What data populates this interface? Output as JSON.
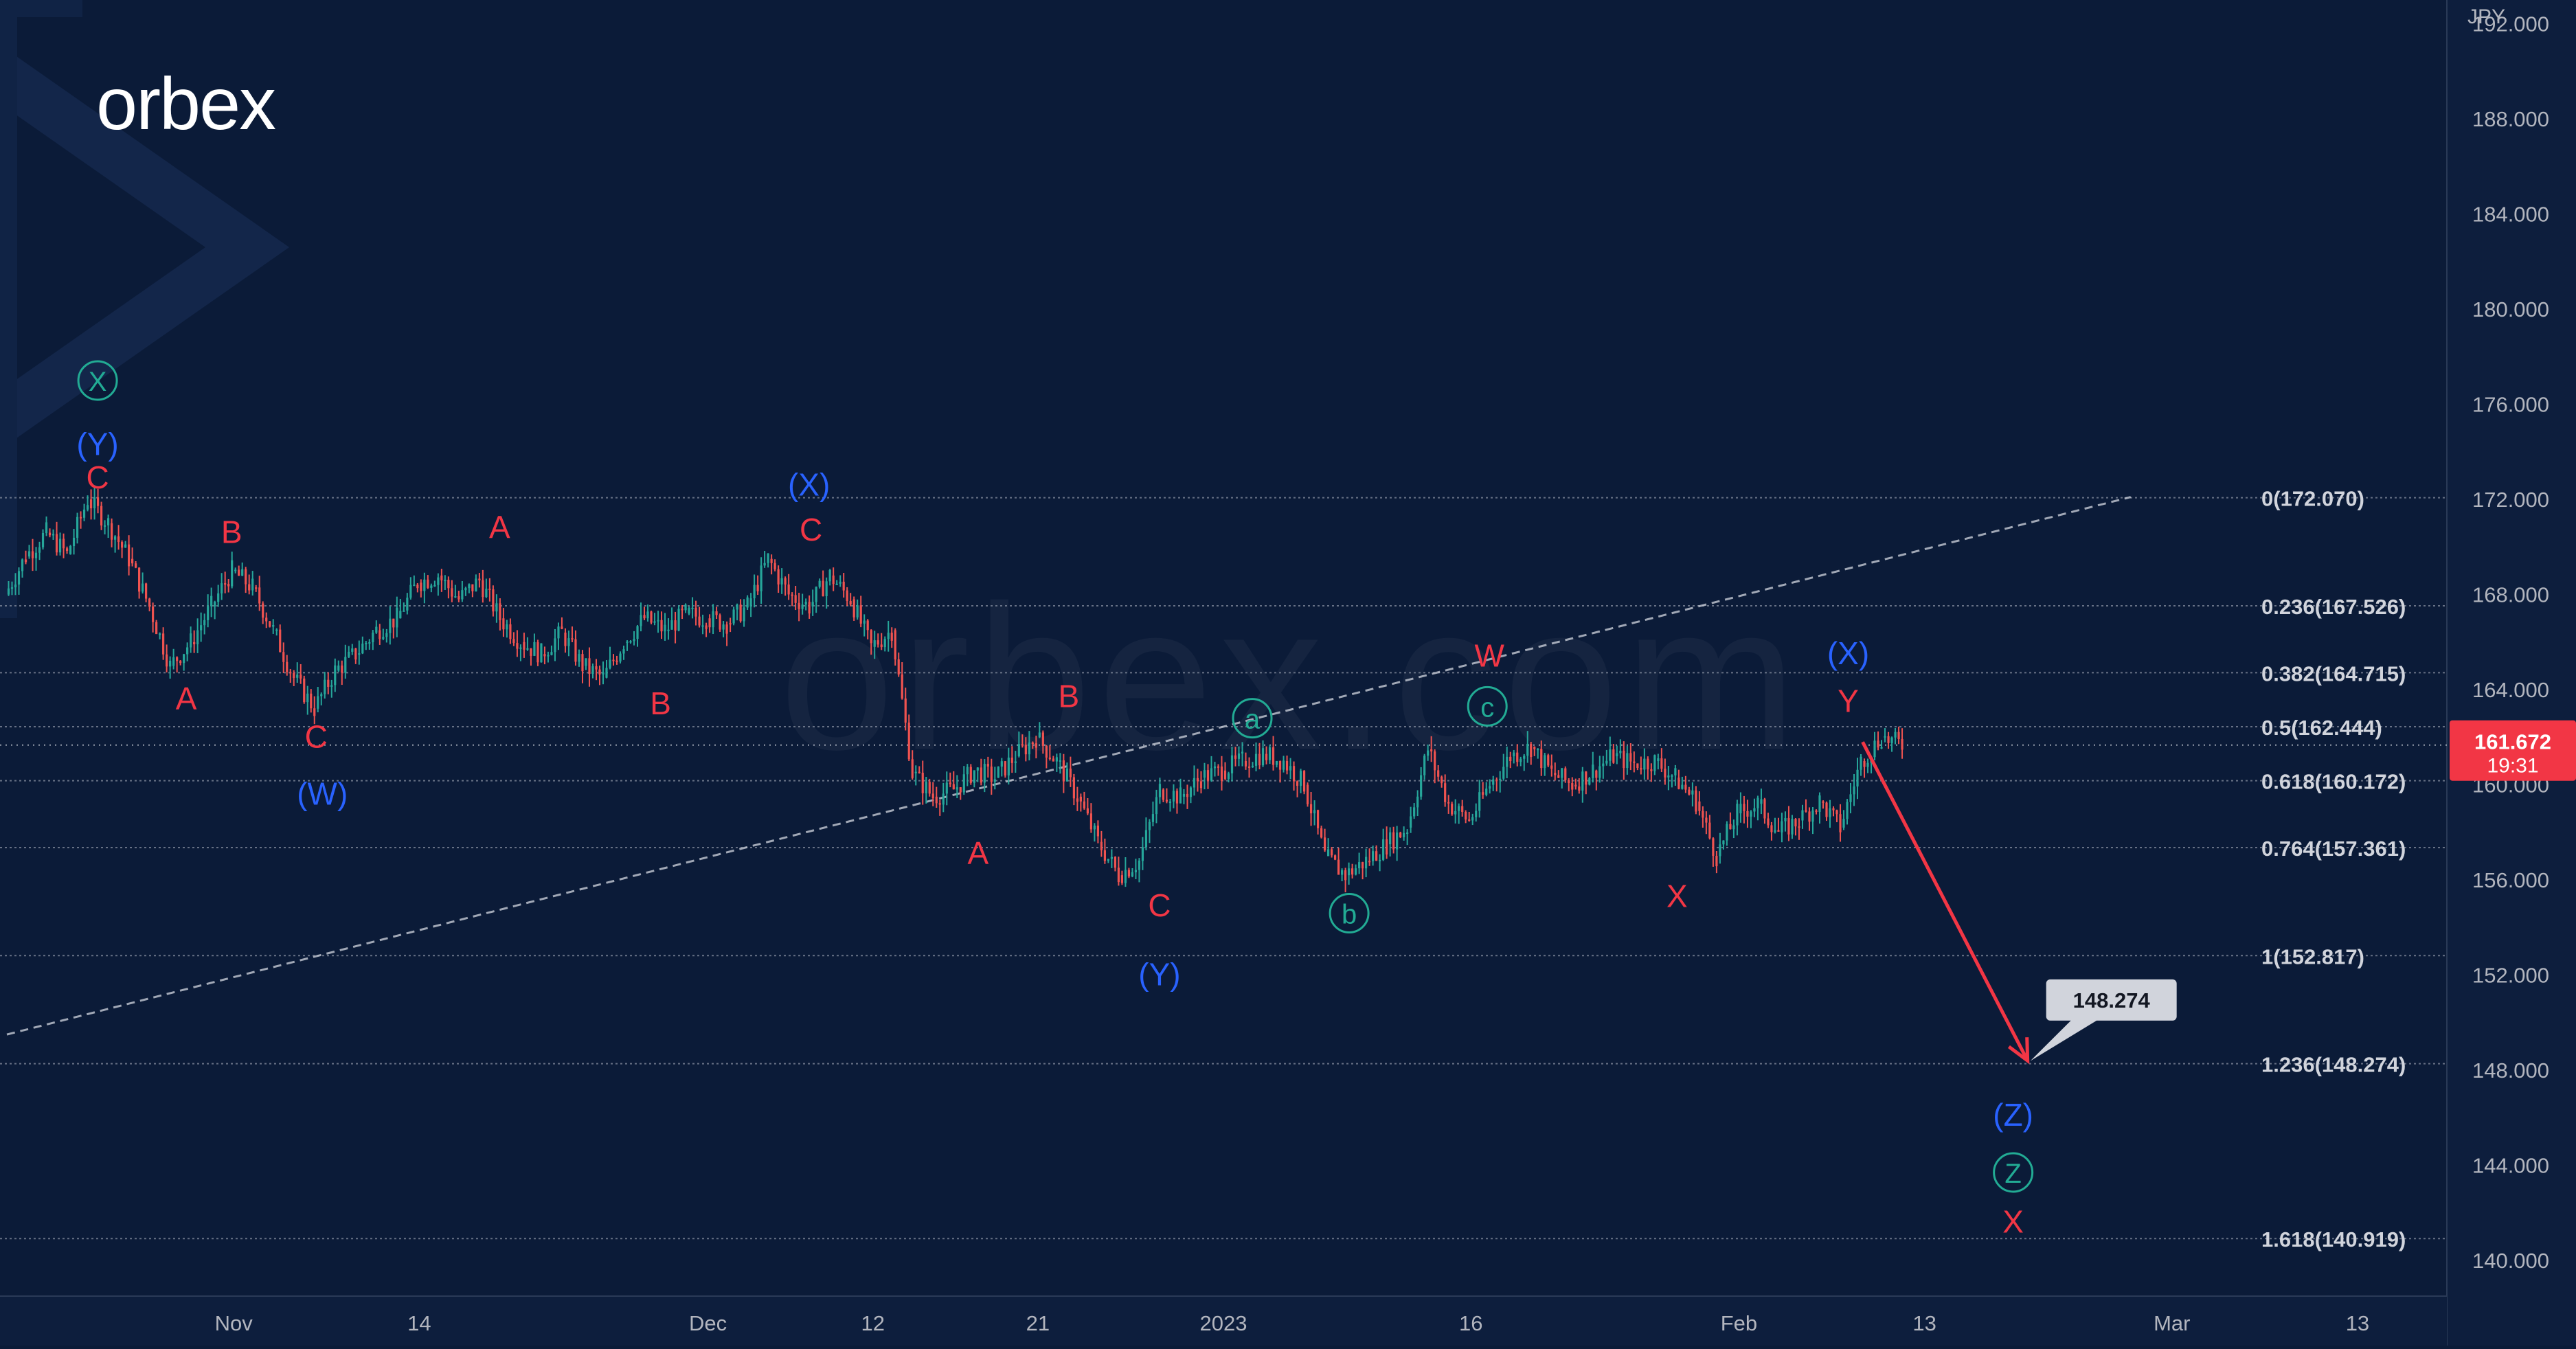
{
  "brand": {
    "logo_text": "orbex",
    "watermark_text": "orbex.com"
  },
  "axis": {
    "currency_label": "JPY",
    "price_ticks": [
      {
        "value": 192,
        "label": "192.000"
      },
      {
        "value": 188,
        "label": "188.000"
      },
      {
        "value": 184,
        "label": "184.000"
      },
      {
        "value": 180,
        "label": "180.000"
      },
      {
        "value": 176,
        "label": "176.000"
      },
      {
        "value": 172,
        "label": "172.000"
      },
      {
        "value": 168,
        "label": "168.000"
      },
      {
        "value": 164,
        "label": "164.000"
      },
      {
        "value": 160,
        "label": "160.000"
      },
      {
        "value": 156,
        "label": "156.000"
      },
      {
        "value": 152,
        "label": "152.000"
      },
      {
        "value": 148,
        "label": "148.000"
      },
      {
        "value": 144,
        "label": "144.000"
      },
      {
        "value": 140,
        "label": "140.000"
      }
    ],
    "time_ticks": [
      {
        "bar": 11,
        "label": "Nov"
      },
      {
        "bar": 20,
        "label": "14"
      },
      {
        "bar": 34,
        "label": "Dec"
      },
      {
        "bar": 42,
        "label": "12"
      },
      {
        "bar": 50,
        "label": "21"
      },
      {
        "bar": 59,
        "label": "2023"
      },
      {
        "bar": 71,
        "label": "16"
      },
      {
        "bar": 84,
        "label": "Feb"
      },
      {
        "bar": 93,
        "label": "13"
      },
      {
        "bar": 105,
        "label": "Mar"
      },
      {
        "bar": 114,
        "label": "13"
      }
    ]
  },
  "current_price": {
    "value": 161.672,
    "label": "161.672",
    "countdown": "19:31",
    "color": "#f23645"
  },
  "target_callout": {
    "value": 148.274,
    "label": "148.274"
  },
  "colors": {
    "background": "#0b1b38",
    "wave_red": "#f23645",
    "wave_blue": "#2962ff",
    "wave_green": "#22ab94",
    "candle_up": "#26a69a",
    "candle_down": "#ef5350",
    "fib_line": "#7e8798"
  },
  "chart_data": {
    "type": "candlestick",
    "title": "",
    "ylabel": "JPY",
    "ylim": [
      138.5,
      193
    ],
    "xlim": [
      0,
      118
    ],
    "grid": false,
    "fibonacci_levels": [
      {
        "ratio": "0",
        "price": 172.07,
        "label": "0(172.070)"
      },
      {
        "ratio": "0.236",
        "price": 167.526,
        "label": "0.236(167.526)"
      },
      {
        "ratio": "0.382",
        "price": 164.715,
        "label": "0.382(164.715)"
      },
      {
        "ratio": "0.5",
        "price": 162.444,
        "label": "0.5(162.444)"
      },
      {
        "ratio": "0.618",
        "price": 160.172,
        "label": "0.618(160.172)"
      },
      {
        "ratio": "0.764",
        "price": 157.361,
        "label": "0.764(157.361)"
      },
      {
        "ratio": "1",
        "price": 152.817,
        "label": "1(152.817)"
      },
      {
        "ratio": "1.236",
        "price": 148.274,
        "label": "1.236(148.274)"
      },
      {
        "ratio": "1.618",
        "price": 140.919,
        "label": "1.618(140.919)"
      }
    ],
    "trendline": {
      "x1": 0,
      "y1": 149.5,
      "x2": 103,
      "y2": 172.1
    },
    "projection_arrow": {
      "x1": 90,
      "y1": 161.8,
      "x2": 98,
      "y2": 148.4
    },
    "price_path": [
      {
        "x": 0,
        "y": 168.0
      },
      {
        "x": 1,
        "y": 169.6
      },
      {
        "x": 2,
        "y": 170.6
      },
      {
        "x": 3,
        "y": 169.7
      },
      {
        "x": 4,
        "y": 172.0
      },
      {
        "x": 5,
        "y": 171.0
      },
      {
        "x": 6,
        "y": 169.5
      },
      {
        "x": 7,
        "y": 167.5
      },
      {
        "x": 8,
        "y": 165.0
      },
      {
        "x": 9,
        "y": 166.0
      },
      {
        "x": 10,
        "y": 167.5
      },
      {
        "x": 11,
        "y": 169.0
      },
      {
        "x": 12,
        "y": 168.3
      },
      {
        "x": 13,
        "y": 166.5
      },
      {
        "x": 14,
        "y": 164.5
      },
      {
        "x": 15,
        "y": 163.2
      },
      {
        "x": 16,
        "y": 164.8
      },
      {
        "x": 17,
        "y": 165.5
      },
      {
        "x": 18,
        "y": 166.5
      },
      {
        "x": 19,
        "y": 167.0
      },
      {
        "x": 20,
        "y": 168.5
      },
      {
        "x": 21,
        "y": 168.8
      },
      {
        "x": 22,
        "y": 167.8
      },
      {
        "x": 23,
        "y": 168.6
      },
      {
        "x": 24,
        "y": 167.0
      },
      {
        "x": 25,
        "y": 166.0
      },
      {
        "x": 26,
        "y": 165.5
      },
      {
        "x": 27,
        "y": 166.4
      },
      {
        "x": 28,
        "y": 165.0
      },
      {
        "x": 29,
        "y": 164.5
      },
      {
        "x": 30,
        "y": 166.0
      },
      {
        "x": 31,
        "y": 167.0
      },
      {
        "x": 32,
        "y": 166.5
      },
      {
        "x": 33,
        "y": 167.2
      },
      {
        "x": 34,
        "y": 167.0
      },
      {
        "x": 35,
        "y": 166.8
      },
      {
        "x": 36,
        "y": 167.5
      },
      {
        "x": 37,
        "y": 169.5
      },
      {
        "x": 38,
        "y": 168.0
      },
      {
        "x": 39,
        "y": 167.5
      },
      {
        "x": 40,
        "y": 168.8
      },
      {
        "x": 41,
        "y": 167.8
      },
      {
        "x": 42,
        "y": 165.8
      },
      {
        "x": 43,
        "y": 166.5
      },
      {
        "x": 44,
        "y": 160.5
      },
      {
        "x": 45,
        "y": 159.5
      },
      {
        "x": 46,
        "y": 159.8
      },
      {
        "x": 47,
        "y": 160.6
      },
      {
        "x": 48,
        "y": 160.3
      },
      {
        "x": 49,
        "y": 161.2
      },
      {
        "x": 50,
        "y": 162.0
      },
      {
        "x": 51,
        "y": 161.0
      },
      {
        "x": 52,
        "y": 159.5
      },
      {
        "x": 53,
        "y": 157.6
      },
      {
        "x": 54,
        "y": 156.2
      },
      {
        "x": 55,
        "y": 156.8
      },
      {
        "x": 56,
        "y": 159.8
      },
      {
        "x": 57,
        "y": 159.5
      },
      {
        "x": 58,
        "y": 160.3
      },
      {
        "x": 59,
        "y": 160.6
      },
      {
        "x": 60,
        "y": 161.0
      },
      {
        "x": 61,
        "y": 161.3
      },
      {
        "x": 62,
        "y": 161.0
      },
      {
        "x": 63,
        "y": 160.0
      },
      {
        "x": 64,
        "y": 157.0
      },
      {
        "x": 65,
        "y": 156.2
      },
      {
        "x": 66,
        "y": 156.8
      },
      {
        "x": 67,
        "y": 157.5
      },
      {
        "x": 68,
        "y": 158.2
      },
      {
        "x": 69,
        "y": 161.5
      },
      {
        "x": 70,
        "y": 159.2
      },
      {
        "x": 71,
        "y": 158.5
      },
      {
        "x": 72,
        "y": 160.0
      },
      {
        "x": 73,
        "y": 161.2
      },
      {
        "x": 74,
        "y": 161.6
      },
      {
        "x": 75,
        "y": 160.5
      },
      {
        "x": 76,
        "y": 160.0
      },
      {
        "x": 77,
        "y": 160.6
      },
      {
        "x": 78,
        "y": 161.2
      },
      {
        "x": 79,
        "y": 160.9
      },
      {
        "x": 80,
        "y": 161.0
      },
      {
        "x": 81,
        "y": 160.3
      },
      {
        "x": 82,
        "y": 159.3
      },
      {
        "x": 83,
        "y": 157.0
      },
      {
        "x": 84,
        "y": 158.8
      },
      {
        "x": 85,
        "y": 159.2
      },
      {
        "x": 86,
        "y": 158.0
      },
      {
        "x": 87,
        "y": 158.5
      },
      {
        "x": 88,
        "y": 159.3
      },
      {
        "x": 89,
        "y": 158.2
      },
      {
        "x": 90,
        "y": 161.0
      },
      {
        "x": 91,
        "y": 162.0
      },
      {
        "x": 92,
        "y": 161.672
      }
    ],
    "wave_labels": [
      {
        "text": "X",
        "style": "circle",
        "color": "green",
        "x": 4.4,
        "y": 177.0
      },
      {
        "text": "(Y)",
        "style": "plain",
        "color": "blue",
        "x": 4.4,
        "y": 174.3
      },
      {
        "text": "C",
        "style": "plain",
        "color": "red",
        "x": 4.4,
        "y": 172.9
      },
      {
        "text": "B",
        "style": "plain",
        "color": "red",
        "x": 10.9,
        "y": 170.6
      },
      {
        "text": "A",
        "style": "plain",
        "color": "red",
        "x": 8.7,
        "y": 163.6
      },
      {
        "text": "C",
        "style": "plain",
        "color": "red",
        "x": 15.0,
        "y": 162.0
      },
      {
        "text": "(W)",
        "style": "plain",
        "color": "blue",
        "x": 15.3,
        "y": 159.6
      },
      {
        "text": "A",
        "style": "plain",
        "color": "red",
        "x": 23.9,
        "y": 170.8
      },
      {
        "text": "B",
        "style": "plain",
        "color": "red",
        "x": 31.7,
        "y": 163.4
      },
      {
        "text": "(X)",
        "style": "plain",
        "color": "blue",
        "x": 38.9,
        "y": 172.6
      },
      {
        "text": "C",
        "style": "plain",
        "color": "red",
        "x": 39.0,
        "y": 170.7
      },
      {
        "text": "B",
        "style": "plain",
        "color": "red",
        "x": 51.5,
        "y": 163.7
      },
      {
        "text": "A",
        "style": "plain",
        "color": "red",
        "x": 47.1,
        "y": 157.1
      },
      {
        "text": "C",
        "style": "plain",
        "color": "red",
        "x": 55.9,
        "y": 154.9
      },
      {
        "text": "(Y)",
        "style": "plain",
        "color": "blue",
        "x": 55.9,
        "y": 152.0
      },
      {
        "text": "a",
        "style": "circle",
        "color": "green",
        "x": 60.4,
        "y": 162.8
      },
      {
        "text": "b",
        "style": "circle",
        "color": "green",
        "x": 65.1,
        "y": 154.6
      },
      {
        "text": "c",
        "style": "circle",
        "color": "green",
        "x": 71.8,
        "y": 163.3
      },
      {
        "text": "W",
        "style": "plain",
        "color": "red",
        "x": 71.9,
        "y": 165.4
      },
      {
        "text": "X",
        "style": "plain",
        "color": "red",
        "x": 81.0,
        "y": 155.3
      },
      {
        "text": "(X)",
        "style": "plain",
        "color": "blue",
        "x": 89.3,
        "y": 165.5
      },
      {
        "text": "Y",
        "style": "plain",
        "color": "red",
        "x": 89.3,
        "y": 163.5
      },
      {
        "text": "(Z)",
        "style": "plain",
        "color": "blue",
        "x": 97.3,
        "y": 146.1
      },
      {
        "text": "Z",
        "style": "circle",
        "color": "green",
        "x": 97.3,
        "y": 143.7
      },
      {
        "text": "X",
        "style": "plain",
        "color": "red",
        "x": 97.3,
        "y": 141.6
      }
    ]
  }
}
